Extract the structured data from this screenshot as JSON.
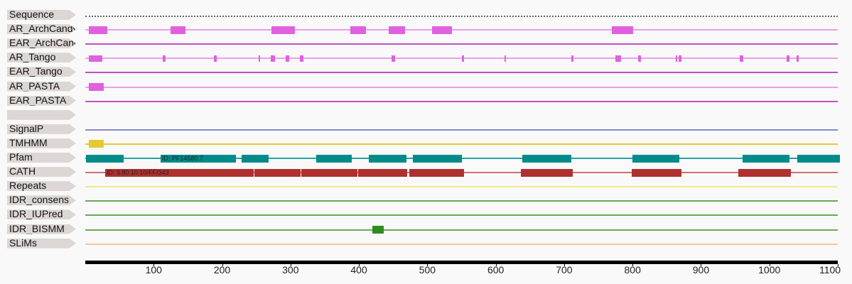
{
  "sequence_length": 1100,
  "tracks": [
    {
      "name": "Sequence",
      "color": "#666666",
      "style": "dotted",
      "features": []
    },
    {
      "name": "AR_ArchCandy",
      "color": "#e060e0",
      "features": [
        {
          "s": 5,
          "e": 32
        },
        {
          "s": 125,
          "e": 146
        },
        {
          "s": 272,
          "e": 306
        },
        {
          "s": 387,
          "e": 410
        },
        {
          "s": 444,
          "e": 467
        },
        {
          "s": 507,
          "e": 536
        },
        {
          "s": 770,
          "e": 801
        }
      ]
    },
    {
      "name": "EAR_ArchCandy",
      "color": "#c050c0",
      "features": []
    },
    {
      "name": "AR_Tango",
      "color": "#e060e0",
      "features": [
        {
          "s": 5,
          "e": 25
        },
        {
          "s": 113,
          "e": 117
        },
        {
          "s": 188,
          "e": 192
        },
        {
          "s": 253,
          "e": 255
        },
        {
          "s": 271,
          "e": 277
        },
        {
          "s": 293,
          "e": 298
        },
        {
          "s": 314,
          "e": 319
        },
        {
          "s": 448,
          "e": 453
        },
        {
          "s": 550,
          "e": 554
        },
        {
          "s": 613,
          "e": 615
        },
        {
          "s": 710,
          "e": 714
        },
        {
          "s": 775,
          "e": 783
        },
        {
          "s": 808,
          "e": 812
        },
        {
          "s": 863,
          "e": 865
        },
        {
          "s": 867,
          "e": 871
        },
        {
          "s": 957,
          "e": 962
        },
        {
          "s": 1025,
          "e": 1029
        },
        {
          "s": 1040,
          "e": 1043
        }
      ]
    },
    {
      "name": "EAR_Tango",
      "color": "#c050c0",
      "features": []
    },
    {
      "name": "AR_PASTA",
      "color": "#e060e0",
      "features": [
        {
          "s": 5,
          "e": 27
        }
      ]
    },
    {
      "name": "EAR_PASTA",
      "color": "#c050c0",
      "features": []
    },
    {
      "name": "",
      "color": "none",
      "features": []
    },
    {
      "name": "SignalP",
      "color": "#8888cc",
      "features": []
    },
    {
      "name": "TMHMM",
      "color": "#e6c830",
      "features": [
        {
          "s": 5,
          "e": 27
        }
      ]
    },
    {
      "name": "Pfam",
      "color": "#008b8b",
      "features": [
        {
          "s": 1,
          "e": 56
        },
        {
          "s": 110,
          "e": 220,
          "label": "ID: PF14580.7"
        },
        {
          "s": 228,
          "e": 268
        },
        {
          "s": 338,
          "e": 390
        },
        {
          "s": 414,
          "e": 469
        },
        {
          "s": 479,
          "e": 551
        },
        {
          "s": 639,
          "e": 711
        },
        {
          "s": 800,
          "e": 868
        },
        {
          "s": 961,
          "e": 1029
        },
        {
          "s": 1041,
          "e": 1103
        }
      ]
    },
    {
      "name": "CATH",
      "color": "#b03030",
      "features": [
        {
          "s": 29,
          "e": 246,
          "label": "ID: 3.80.10.10/FF/343"
        },
        {
          "s": 247,
          "e": 315
        },
        {
          "s": 316,
          "e": 398
        },
        {
          "s": 399,
          "e": 471
        },
        {
          "s": 474,
          "e": 554
        },
        {
          "s": 637,
          "e": 713
        },
        {
          "s": 799,
          "e": 871
        },
        {
          "s": 955,
          "e": 1031
        }
      ]
    },
    {
      "name": "Repeats",
      "color": "#f2e88a",
      "features": []
    },
    {
      "name": "IDR_consens",
      "color": "#2e8b20",
      "features": []
    },
    {
      "name": "IDR_IUPred",
      "color": "#2e8b20",
      "features": []
    },
    {
      "name": "IDR_BISMM",
      "color": "#2e8b20",
      "features": [
        {
          "s": 420,
          "e": 436
        }
      ]
    },
    {
      "name": "SLiMs",
      "color": "#f5c89a",
      "features": []
    }
  ],
  "track_line_colors": {
    "AR_ArchCandy": "#e9a0e9",
    "EAR_ArchCandy": "#c050c0",
    "AR_Tango": "#e9a0e9",
    "EAR_Tango": "#c050c0",
    "AR_PASTA": "#e9a0e9",
    "EAR_PASTA": "#c050c0",
    "SignalP": "#8888cc",
    "TMHMM": "#e6c830",
    "Pfam": "#2aa0a0",
    "CATH": "#d07070",
    "Repeats": "#f2e88a",
    "IDR_consens": "#6aaa50",
    "IDR_IUPred": "#6aaa50",
    "IDR_BISMM": "#6aaa50",
    "SLiMs": "#f5c89a"
  },
  "axis": {
    "ticks": [
      100,
      200,
      300,
      400,
      500,
      600,
      700,
      800,
      900,
      1000,
      1100
    ]
  }
}
